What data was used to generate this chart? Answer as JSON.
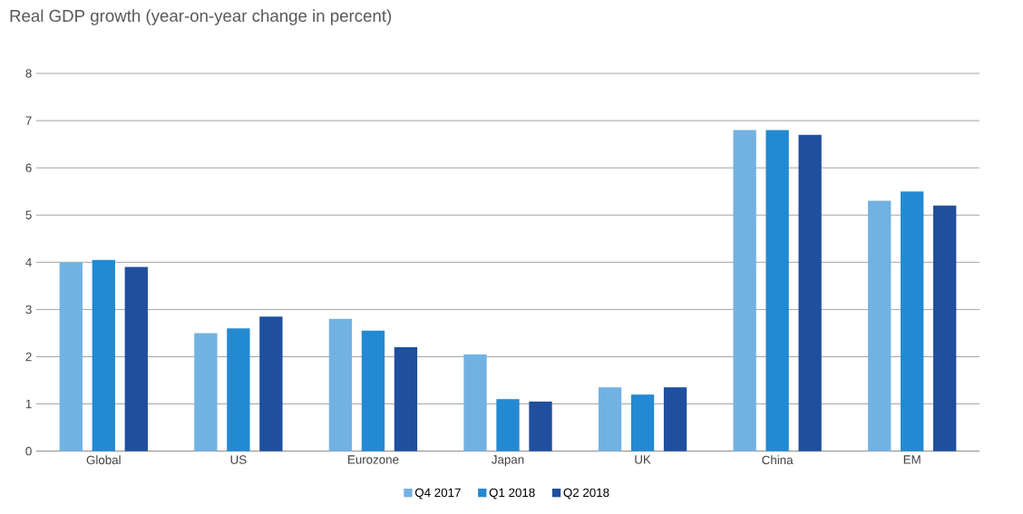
{
  "chart_data": {
    "type": "bar",
    "title": "Real GDP growth (year-on-year change in percent)",
    "categories": [
      "Global",
      "US",
      "Eurozone",
      "Japan",
      "UK",
      "China",
      "EM"
    ],
    "series": [
      {
        "name": "Q4 2017",
        "color": "#72b2e2",
        "values": [
          4.0,
          2.5,
          2.8,
          2.05,
          1.35,
          6.8,
          5.3
        ]
      },
      {
        "name": "Q1 2018",
        "color": "#2389d2",
        "values": [
          4.05,
          2.6,
          2.55,
          1.1,
          1.2,
          6.8,
          5.5
        ]
      },
      {
        "name": "Q2 2018",
        "color": "#1f4f9e",
        "values": [
          3.9,
          2.85,
          2.2,
          1.05,
          1.35,
          6.7,
          5.2
        ]
      }
    ],
    "ylim": [
      0,
      8
    ],
    "yticks": [
      0,
      1,
      2,
      3,
      4,
      5,
      6,
      7,
      8
    ],
    "grid": "y",
    "legend": "bottom"
  }
}
